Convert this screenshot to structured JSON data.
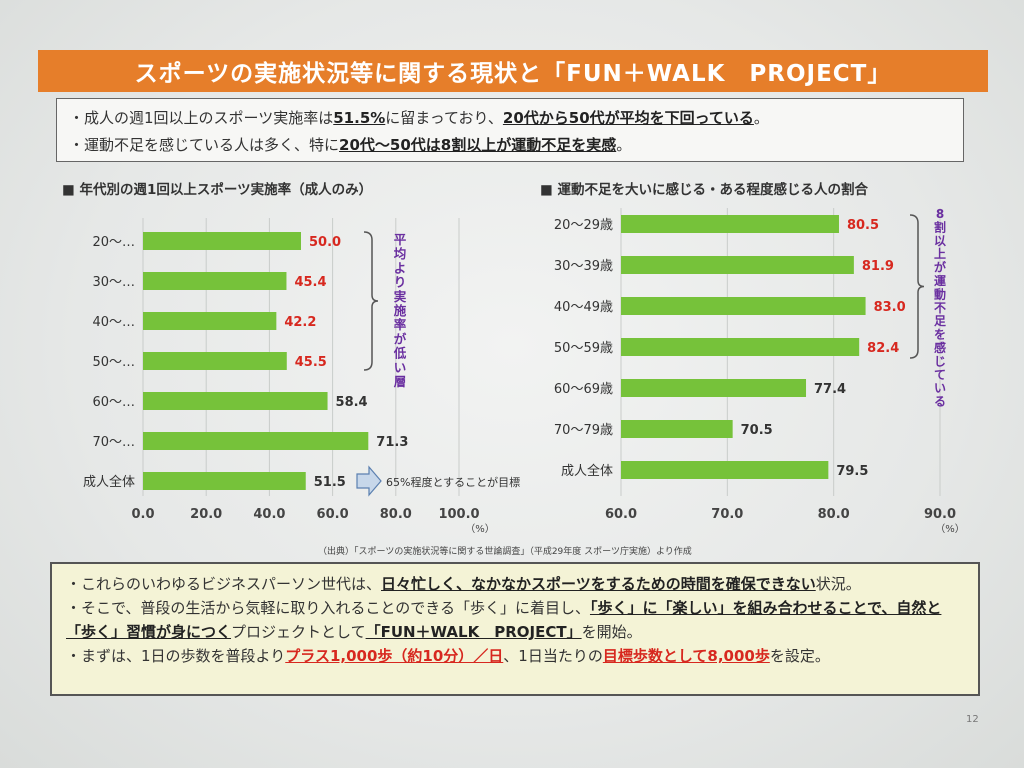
{
  "title": "スポーツの実施状況等に関する現状と「FUN＋WALK　PROJECT」",
  "summary": {
    "line1": {
      "pre": "・成人の週1回以上のスポーツ実施率は",
      "rate": "51.5%",
      "mid": "に留まっており、",
      "tail": "20代から50代が平均を下回っている",
      "end": "。"
    },
    "line2": {
      "pre": "・運動不足を感じている人は多く、特に",
      "tail": "20代～50代は8割以上が運動不足を実感",
      "end": "。"
    }
  },
  "chart_data": [
    {
      "type": "bar",
      "orientation": "horizontal",
      "title": "■ 年代別の週1回以上スポーツ実施率（成人のみ）",
      "categories": [
        "20～…",
        "30～…",
        "40～…",
        "50～…",
        "60～…",
        "70～…",
        "成人全体"
      ],
      "values": [
        50.0,
        45.4,
        42.2,
        45.5,
        58.4,
        71.3,
        51.5
      ],
      "value_colors": [
        "#d7281f",
        "#d7281f",
        "#d7281f",
        "#d7281f",
        "#333333",
        "#333333",
        "#333333"
      ],
      "xlim": [
        0,
        100
      ],
      "xticks": [
        "0.0",
        "20.0",
        "40.0",
        "60.0",
        "80.0",
        "100.0"
      ],
      "unit": "（%）",
      "bracket_label": "平均より実施率が低い層",
      "arrow_note": "65%程度とすることが目標",
      "bar_color": "#76c23a"
    },
    {
      "type": "bar",
      "orientation": "horizontal",
      "title": "■ 運動不足を大いに感じる・ある程度感じる人の割合",
      "categories": [
        "20～29歳",
        "30～39歳",
        "40～49歳",
        "50～59歳",
        "60～69歳",
        "70～79歳",
        "成人全体"
      ],
      "values": [
        80.5,
        81.9,
        83.0,
        82.4,
        77.4,
        70.5,
        79.5
      ],
      "value_colors": [
        "#d7281f",
        "#d7281f",
        "#d7281f",
        "#d7281f",
        "#333333",
        "#333333",
        "#333333"
      ],
      "xlim": [
        60,
        90
      ],
      "xticks": [
        "60.0",
        "70.0",
        "80.0",
        "90.0"
      ],
      "unit": "（%）",
      "bracket_label": "8割以上が運動不足を感じている",
      "bar_color": "#76c23a"
    }
  ],
  "source": "（出典）「スポーツの実施状況等に関する世論調査」（平成29年度 スポーツ庁実施）より作成",
  "bottom": {
    "l1_pre": "・これらのいわゆるビジネスパーソン世代は、",
    "l1_b": "日々忙しく、なかなかスポーツをするための時間を確保できない",
    "l1_end": "状況。",
    "l2_pre": "・そこで、普段の生活から気軽に取り入れることのできる「歩く」に着目し、",
    "l2_b": "「歩く」に「楽しい」を組み合わせることで、自然と「歩く」習慣が身につく",
    "l2_mid": "プロジェクトとして",
    "l2_b2": "「FUN＋WALK　PROJECT」",
    "l2_end": "を開始。",
    "l3_pre": "・まずは、1日の歩数を普段より",
    "l3_r": "プラス1,000歩（約10分）／日",
    "l3_mid": "、1日当たりの",
    "l3_r2": "目標歩数として8,000歩",
    "l3_end": "を設定。"
  },
  "page_number": "12"
}
